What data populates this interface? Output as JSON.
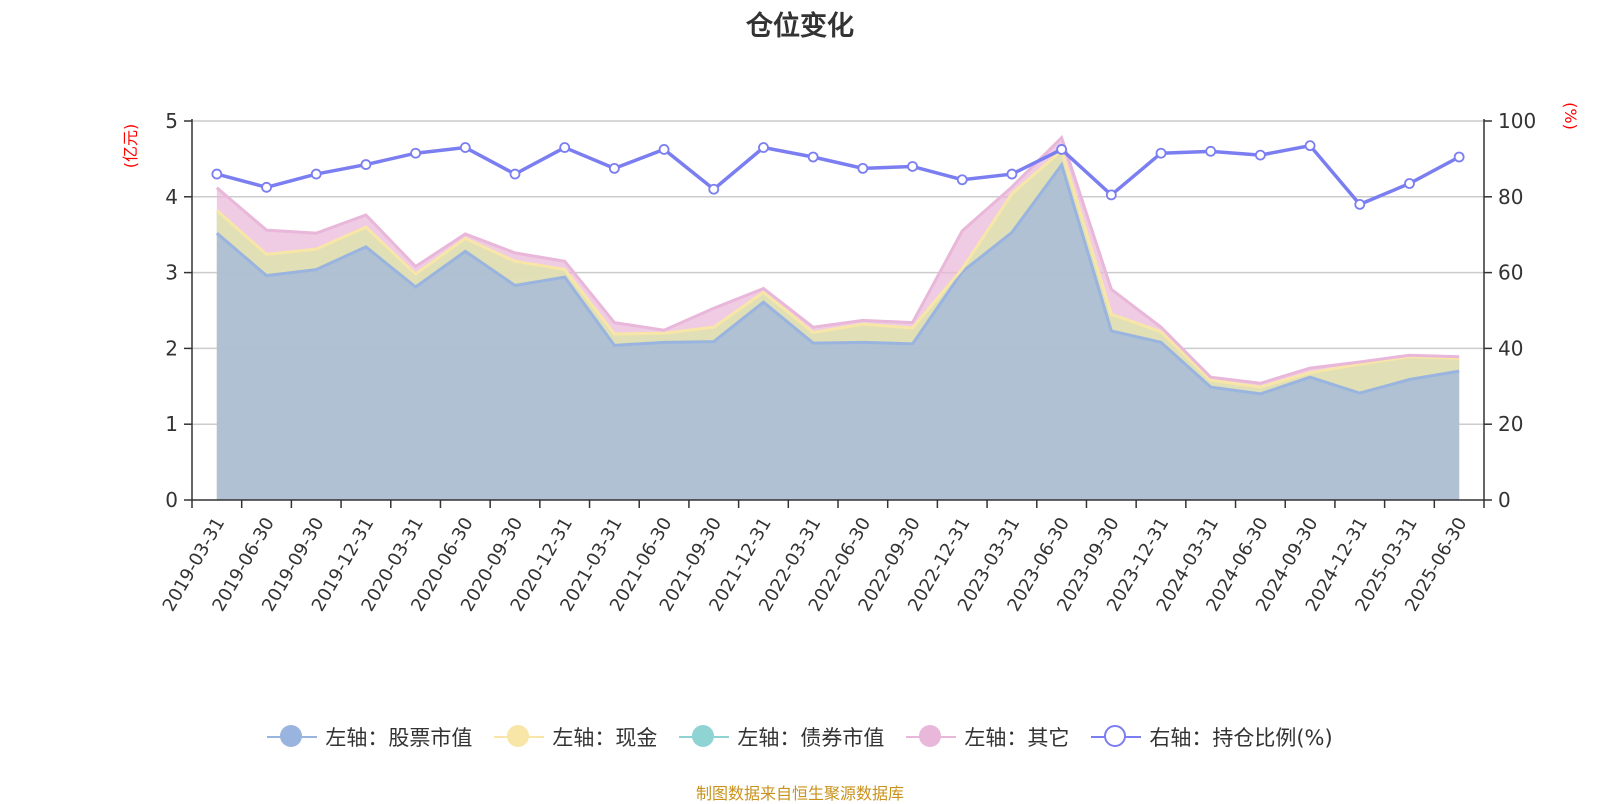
{
  "chart_data": {
    "type": "area",
    "title": "仓位变化",
    "categories": [
      "2019-03-31",
      "2019-06-30",
      "2019-09-30",
      "2019-12-31",
      "2020-03-31",
      "2020-06-30",
      "2020-09-30",
      "2020-12-31",
      "2021-03-31",
      "2021-06-30",
      "2021-09-30",
      "2021-12-31",
      "2022-03-31",
      "2022-06-30",
      "2022-09-30",
      "2022-12-31",
      "2023-03-31",
      "2023-06-30",
      "2023-09-30",
      "2023-12-31",
      "2024-03-31",
      "2024-06-30",
      "2024-09-30",
      "2024-12-31",
      "2025-03-31",
      "2025-06-30"
    ],
    "left_axis": {
      "unit": "(亿元)",
      "ylim": [
        0,
        5
      ],
      "ticks": [
        "0",
        "1",
        "2",
        "3",
        "4",
        "5"
      ]
    },
    "right_axis": {
      "unit": "(%)",
      "ylim": [
        0,
        100
      ],
      "ticks": [
        "0",
        "20",
        "40",
        "60",
        "80",
        "100"
      ]
    },
    "series": [
      {
        "name": "左轴：股票市值",
        "axis": "left",
        "stack": true,
        "color": "#9ab4e0",
        "values": [
          3.52,
          2.96,
          3.04,
          3.34,
          2.81,
          3.28,
          2.83,
          2.94,
          2.04,
          2.08,
          2.09,
          2.61,
          2.07,
          2.08,
          2.06,
          3.01,
          3.53,
          4.42,
          2.23,
          2.08,
          1.49,
          1.4,
          1.62,
          1.41,
          1.59,
          1.7
        ]
      },
      {
        "name": "左轴：现金",
        "axis": "left",
        "stack": true,
        "color": "#f7e6a7",
        "values": [
          0.3,
          0.28,
          0.27,
          0.26,
          0.17,
          0.17,
          0.32,
          0.1,
          0.15,
          0.12,
          0.19,
          0.13,
          0.14,
          0.24,
          0.21,
          0.04,
          0.51,
          0.19,
          0.22,
          0.14,
          0.09,
          0.09,
          0.06,
          0.38,
          0.3,
          0.17
        ]
      },
      {
        "name": "左轴：债券市值",
        "axis": "left",
        "stack": true,
        "color": "#8fd3d3",
        "values": [
          0,
          0,
          0,
          0,
          0,
          0,
          0,
          0,
          0,
          0,
          0,
          0,
          0,
          0,
          0,
          0,
          0,
          0,
          0,
          0,
          0,
          0,
          0,
          0,
          0,
          0
        ]
      },
      {
        "name": "左轴：其它",
        "axis": "left",
        "stack": true,
        "color": "#e8b7d9",
        "values": [
          0.3,
          0.32,
          0.21,
          0.16,
          0.1,
          0.06,
          0.11,
          0.11,
          0.15,
          0.04,
          0.25,
          0.05,
          0.07,
          0.05,
          0.07,
          0.5,
          0.09,
          0.17,
          0.33,
          0.06,
          0.04,
          0.05,
          0.06,
          0.03,
          0.02,
          0.02
        ]
      },
      {
        "name": "右轴：持仓比例(%)",
        "axis": "right",
        "stack": false,
        "color": "#7b7ef0",
        "values": [
          86,
          82.5,
          86,
          88.5,
          91.5,
          93,
          86,
          93,
          87.5,
          92.5,
          82,
          93,
          90.5,
          87.5,
          88,
          84.5,
          86,
          92.5,
          80.5,
          91.5,
          92,
          91,
          93.5,
          78,
          83.5,
          90.5
        ]
      }
    ],
    "legend_position": "bottom",
    "grid": true
  },
  "source_note": "制图数据来自恒生聚源数据库"
}
